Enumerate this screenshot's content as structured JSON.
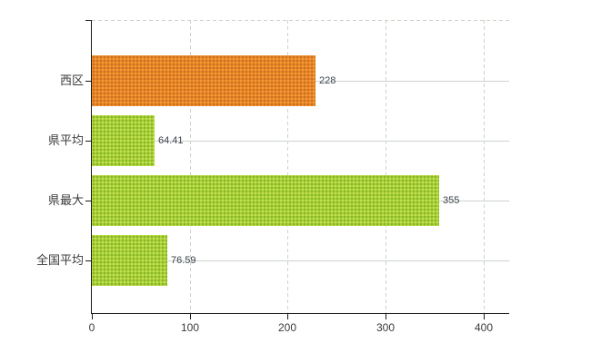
{
  "chart_data": {
    "type": "bar",
    "orientation": "horizontal",
    "title": "",
    "categories": [
      "西区",
      "県平均",
      "県最大",
      "全国平均"
    ],
    "values": [
      228,
      64.41,
      355,
      76.59
    ],
    "value_labels": [
      "228",
      "64.41",
      "355",
      "76.59"
    ],
    "bars": [
      {
        "label": "西区",
        "value": 228,
        "value_label": "228",
        "base": "#e8861f",
        "dot_dark": "#c66d2d",
        "dot_light": "#f59a3c"
      },
      {
        "label": "県平均",
        "value": 64.41,
        "value_label": "64.41",
        "base": "#a8d035",
        "dot_dark": "#82b32b",
        "dot_light": "#c6e055"
      },
      {
        "label": "県最大",
        "value": 355,
        "value_label": "355",
        "base": "#a8d035",
        "dot_dark": "#82b32b",
        "dot_light": "#c6e055"
      },
      {
        "label": "全国平均",
        "value": 76.59,
        "value_label": "76.59",
        "base": "#a8d035",
        "dot_dark": "#82b32b",
        "dot_light": "#c6e055"
      }
    ],
    "x_ticks": [
      0,
      100,
      200,
      300,
      400
    ],
    "x_tick_labels": [
      "0",
      "100",
      "200",
      "300",
      "400"
    ],
    "xlim": [
      0,
      426
    ],
    "grid": true,
    "legend": false,
    "data_labels_shown": true
  },
  "colors": {
    "background": "#ffffff",
    "axis": "#1a1a1a",
    "gridline": "#ccd3cc",
    "dashed_border": "#d6ccc5",
    "tick_text": "#3a3a3a",
    "value_text": "#3c434c",
    "accent_orange": "#e2831d",
    "accent_green": "#a2cb2e"
  }
}
